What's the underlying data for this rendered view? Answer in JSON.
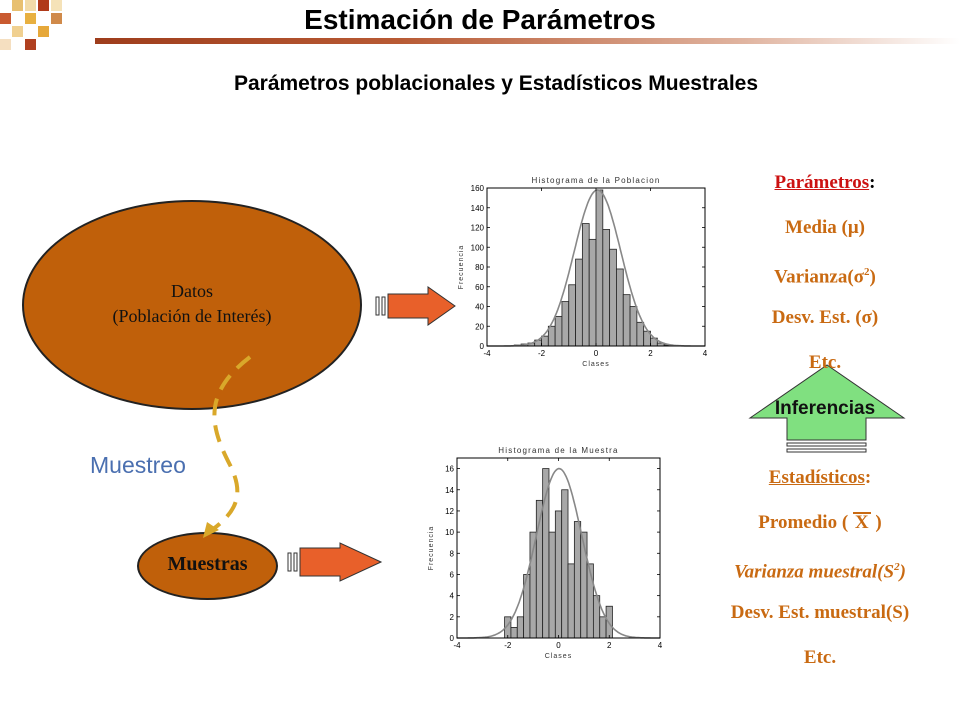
{
  "title": "Estimación de Parámetros",
  "subtitle": "Parámetros poblacionales y Estadísticos Muestrales",
  "population": {
    "line1": "Datos",
    "line2": "(Población de Interés)"
  },
  "sample": {
    "label": "Muestras"
  },
  "sampling_label": "Muestreo",
  "inference_label": "Inferencias",
  "parameters": {
    "heading": "Parámetros",
    "colon": ":",
    "mean_pre": "Media (",
    "mean_symbol": "μ",
    "mean_post": ")",
    "variance_pre": "Varianza(",
    "variance_symbol": "σ",
    "variance_sup": "2",
    "variance_post": ")",
    "std_pre": "Desv. Est. (",
    "std_symbol": "σ",
    "std_post": ")",
    "etc": "Etc."
  },
  "statistics": {
    "heading": "Estadísticos",
    "colon": ":",
    "mean_pre": "Promedio ( ",
    "mean_symbol": "X",
    "mean_post": " )",
    "variance_pre": "Varianza muestral(S",
    "variance_sup": "2",
    "variance_post": ")",
    "std": "Desv. Est. muestral(S)",
    "etc": "Etc."
  },
  "colors": {
    "ellipse": "#c0600a",
    "arrow": "#e8602a",
    "inference_arrow": "#80e080",
    "text_orange": "#c96a12",
    "red": "#cc1111",
    "sampling_text": "#4a6fb0"
  },
  "chart_data": [
    {
      "type": "bar",
      "title": "Histograma de la Poblacion",
      "xlabel": "Clases",
      "ylabel": "Frecuencia",
      "xlim": [
        -4,
        4
      ],
      "ylim": [
        0,
        160
      ],
      "xticks": [
        -4,
        -2,
        0,
        2,
        4
      ],
      "yticks": [
        0,
        20,
        40,
        60,
        80,
        100,
        120,
        140,
        160
      ],
      "bin_width": 0.25,
      "x": [
        -3.125,
        -2.875,
        -2.625,
        -2.375,
        -2.125,
        -1.875,
        -1.625,
        -1.375,
        -1.125,
        -0.875,
        -0.625,
        -0.375,
        -0.125,
        0.125,
        0.375,
        0.625,
        0.875,
        1.125,
        1.375,
        1.625,
        1.875,
        2.125,
        2.375,
        2.625,
        2.875,
        3.125
      ],
      "values": [
        0,
        1,
        2,
        3,
        6,
        10,
        20,
        30,
        45,
        62,
        88,
        124,
        108,
        158,
        118,
        98,
        78,
        52,
        40,
        24,
        15,
        8,
        3,
        1,
        0,
        0
      ],
      "curve": "normal fit",
      "grid": false
    },
    {
      "type": "bar",
      "title": "Histograma de la Muestra",
      "xlabel": "Clases",
      "ylabel": "Frecuencia",
      "xlim": [
        -4,
        4
      ],
      "ylim": [
        0,
        17
      ],
      "xticks": [
        -4,
        -2,
        0,
        2,
        4
      ],
      "yticks": [
        0,
        2,
        4,
        6,
        8,
        10,
        12,
        14,
        16
      ],
      "bin_width": 0.25,
      "x": [
        -2.0,
        -1.75,
        -1.5,
        -1.25,
        -1.0,
        -0.75,
        -0.5,
        -0.25,
        0,
        0.25,
        0.5,
        0.75,
        1.0,
        1.25,
        1.5,
        1.75,
        2.0
      ],
      "values": [
        2,
        1,
        2,
        6,
        10,
        13,
        16,
        10,
        12,
        14,
        7,
        11,
        10,
        7,
        4,
        2,
        3
      ],
      "curve": "normal fit",
      "grid": false
    }
  ]
}
